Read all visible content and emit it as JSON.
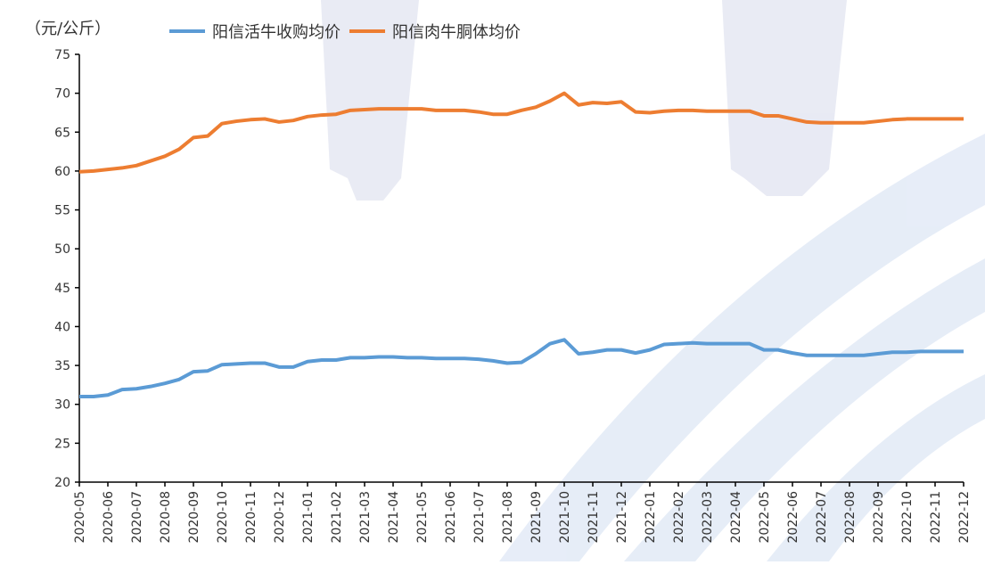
{
  "chart_data": {
    "type": "line",
    "y_label": "（元/公斤）",
    "categories": [
      "2020-05",
      null,
      "2020-06",
      null,
      "2020-07",
      null,
      "2020-08",
      null,
      "2020-09",
      null,
      "2020-10",
      null,
      "2020-11",
      null,
      "2020-12",
      null,
      "2021-01",
      null,
      "2021-02",
      null,
      "2021-03",
      null,
      "2021-04",
      null,
      "2021-05",
      null,
      "2021-06",
      null,
      "2021-07",
      null,
      "2021-08",
      null,
      "2021-09",
      null,
      "2021-10",
      null,
      "2021-11",
      null,
      "2021-12",
      null,
      "2022-01",
      null,
      "2022-02",
      null,
      "2022-03",
      null,
      "2022-04",
      null,
      "2022-05",
      null,
      "2022-06",
      null,
      "2022-07",
      null,
      "2022-08",
      null,
      "2022-09",
      null,
      "2022-10",
      null,
      "2022-11",
      null,
      "2022-12"
    ],
    "series": [
      {
        "name": "阳信活牛收购均价",
        "color": "#5b9bd5",
        "values": [
          31.0,
          31.0,
          31.2,
          31.9,
          32.0,
          32.3,
          32.7,
          33.2,
          34.2,
          34.3,
          35.1,
          35.2,
          35.3,
          35.3,
          34.8,
          34.8,
          35.5,
          35.7,
          35.7,
          36.0,
          36.0,
          36.1,
          36.1,
          36.0,
          36.0,
          35.9,
          35.9,
          35.9,
          35.8,
          35.6,
          35.3,
          35.4,
          36.5,
          37.8,
          38.3,
          36.5,
          36.7,
          37.0,
          37.0,
          36.6,
          37.0,
          37.7,
          37.8,
          37.9,
          37.8,
          37.8,
          37.8,
          37.8,
          37.0,
          37.0,
          36.6,
          36.3,
          36.3,
          36.3,
          36.3,
          36.3,
          36.5,
          36.7,
          36.7,
          36.8,
          36.8,
          36.8,
          36.8
        ]
      },
      {
        "name": "阳信肉牛胴体均价",
        "color": "#ed7d31",
        "values": [
          59.9,
          60.0,
          60.2,
          60.4,
          60.7,
          61.3,
          61.9,
          62.8,
          64.3,
          64.5,
          66.1,
          66.4,
          66.6,
          66.7,
          66.3,
          66.5,
          67.0,
          67.2,
          67.3,
          67.8,
          67.9,
          68.0,
          68.0,
          68.0,
          68.0,
          67.8,
          67.8,
          67.8,
          67.6,
          67.3,
          67.3,
          67.8,
          68.2,
          69.0,
          70.0,
          68.5,
          68.8,
          68.7,
          68.9,
          67.6,
          67.5,
          67.7,
          67.8,
          67.8,
          67.7,
          67.7,
          67.7,
          67.7,
          67.1,
          67.1,
          66.7,
          66.3,
          66.2,
          66.2,
          66.2,
          66.2,
          66.4,
          66.6,
          66.7,
          66.7,
          66.7,
          66.7,
          66.7
        ]
      }
    ],
    "ylim": [
      20,
      75
    ],
    "yticks": [
      20,
      25,
      30,
      35,
      40,
      45,
      50,
      55,
      60,
      65,
      70,
      75
    ]
  }
}
